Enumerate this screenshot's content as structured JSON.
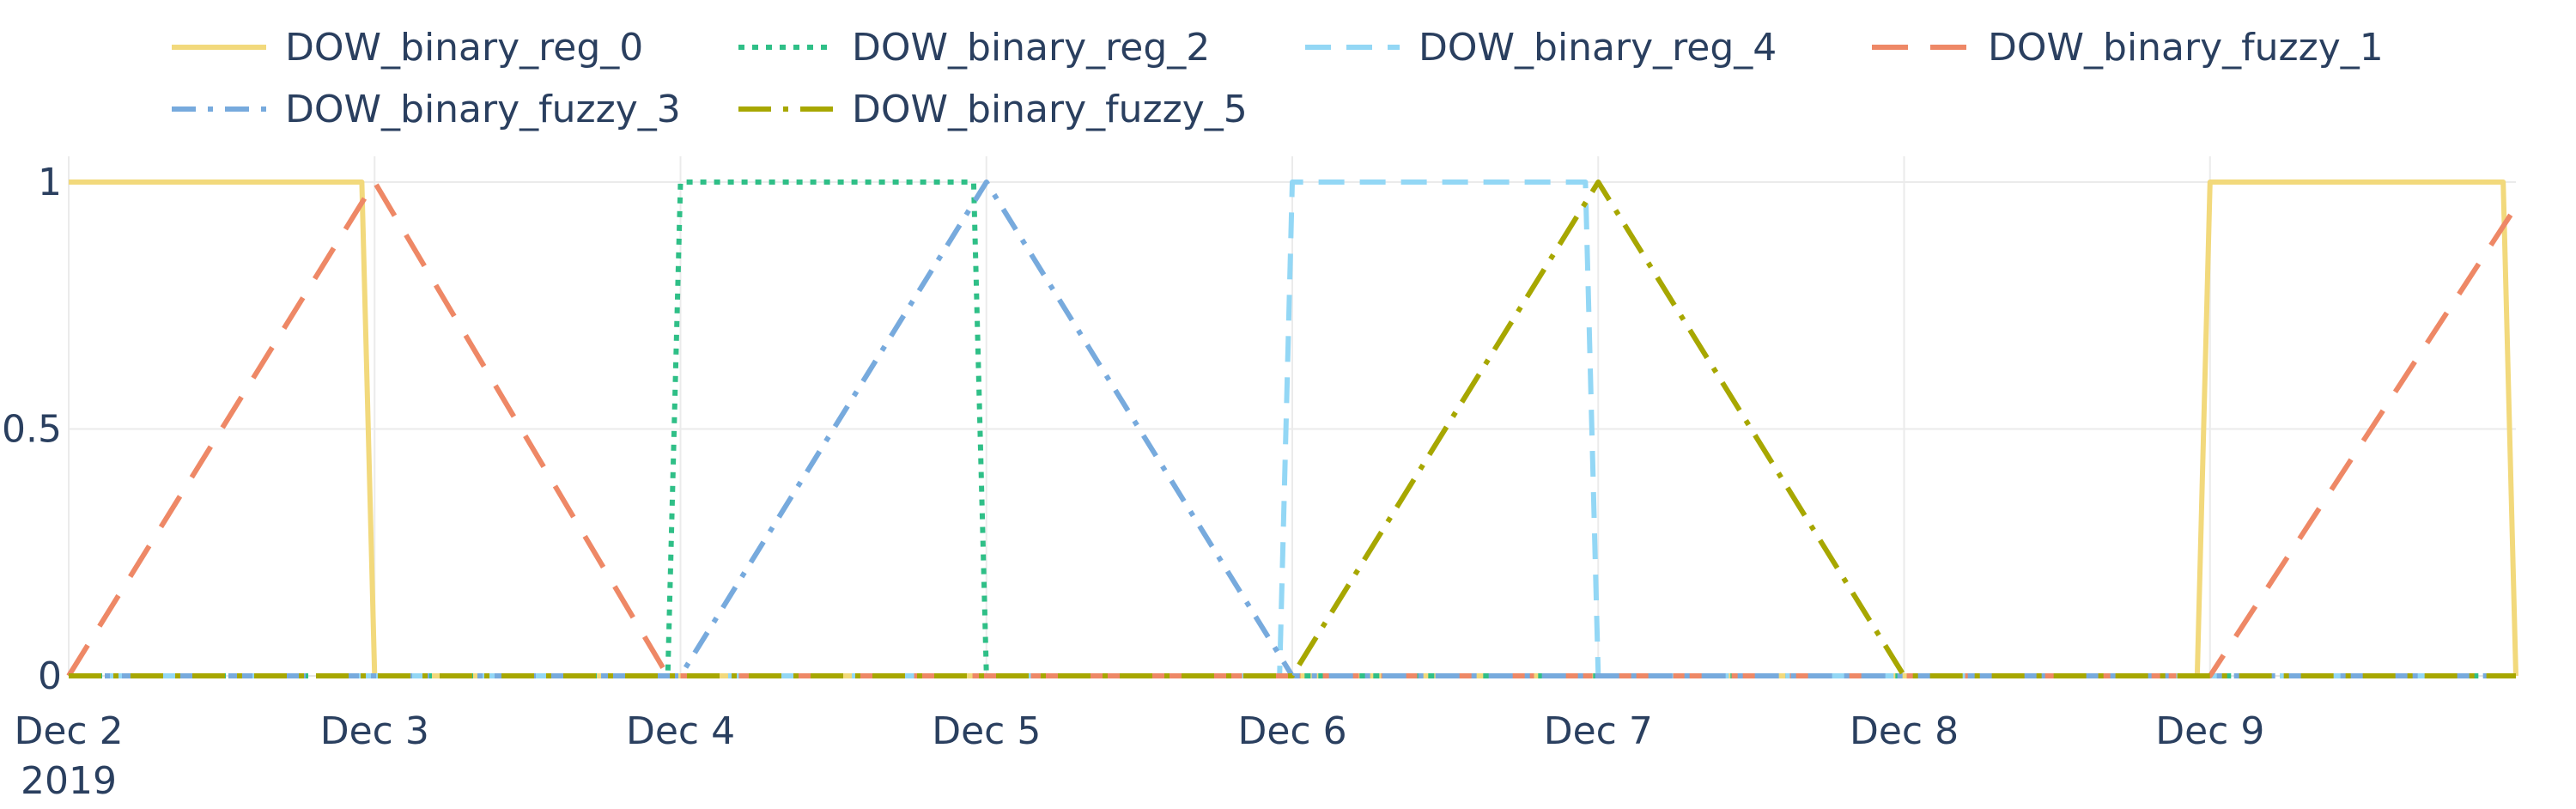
{
  "chart_data": {
    "type": "line",
    "title": "",
    "xlabel": "",
    "ylabel": "",
    "x_axis": {
      "type": "date",
      "range": [
        "2019-12-02T00:00",
        "2019-12-10T00:00"
      ],
      "ticks": [
        {
          "value": "2019-12-02T00:00",
          "label": "Dec 2",
          "sublabel": "2019"
        },
        {
          "value": "2019-12-03T00:00",
          "label": "Dec 3"
        },
        {
          "value": "2019-12-04T00:00",
          "label": "Dec 4"
        },
        {
          "value": "2019-12-05T00:00",
          "label": "Dec 5"
        },
        {
          "value": "2019-12-06T00:00",
          "label": "Dec 6"
        },
        {
          "value": "2019-12-07T00:00",
          "label": "Dec 7"
        },
        {
          "value": "2019-12-08T00:00",
          "label": "Dec 8"
        },
        {
          "value": "2019-12-09T00:00",
          "label": "Dec 9"
        }
      ],
      "grid": true
    },
    "y_axis": {
      "range": [
        0,
        1
      ],
      "ticks": [
        {
          "value": 0,
          "label": "0"
        },
        {
          "value": 0.5,
          "label": "0.5"
        },
        {
          "value": 1,
          "label": "1"
        }
      ],
      "grid": true
    },
    "legend": {
      "position": "top",
      "orientation": "horizontal"
    },
    "series": [
      {
        "name": "DOW_binary_reg_0",
        "color": "#f2d97c",
        "dash": "solid",
        "points": [
          [
            "2019-12-02T00:00",
            1
          ],
          [
            "2019-12-02T23:00",
            1
          ],
          [
            "2019-12-03T00:00",
            0
          ],
          [
            "2019-12-08T23:00",
            0
          ],
          [
            "2019-12-09T00:00",
            1
          ],
          [
            "2019-12-09T23:00",
            1
          ],
          [
            "2019-12-10T00:00",
            0
          ]
        ]
      },
      {
        "name": "DOW_binary_reg_2",
        "color": "#2fbf87",
        "dash": "dot",
        "points": [
          [
            "2019-12-02T00:00",
            0
          ],
          [
            "2019-12-03T23:00",
            0
          ],
          [
            "2019-12-04T00:00",
            1
          ],
          [
            "2019-12-04T23:00",
            1
          ],
          [
            "2019-12-05T00:00",
            0
          ],
          [
            "2019-12-10T00:00",
            0
          ]
        ]
      },
      {
        "name": "DOW_binary_reg_4",
        "color": "#93d7f5",
        "dash": "dash",
        "points": [
          [
            "2019-12-02T00:00",
            0
          ],
          [
            "2019-12-05T23:00",
            0
          ],
          [
            "2019-12-06T00:00",
            1
          ],
          [
            "2019-12-06T23:00",
            1
          ],
          [
            "2019-12-07T00:00",
            0
          ],
          [
            "2019-12-10T00:00",
            0
          ]
        ]
      },
      {
        "name": "DOW_binary_fuzzy_1",
        "color": "#ee8866",
        "dash": "longdash",
        "points": [
          [
            "2019-12-02T00:00",
            0
          ],
          [
            "2019-12-03T00:00",
            1
          ],
          [
            "2019-12-03T23:00",
            0
          ],
          [
            "2019-12-09T00:00",
            0
          ],
          [
            "2019-12-10T00:00",
            0.95
          ]
        ]
      },
      {
        "name": "DOW_binary_fuzzy_3",
        "color": "#77aadd",
        "dash": "dashdot",
        "points": [
          [
            "2019-12-02T00:00",
            0
          ],
          [
            "2019-12-04T00:00",
            0
          ],
          [
            "2019-12-05T00:00",
            1
          ],
          [
            "2019-12-06T00:00",
            0
          ],
          [
            "2019-12-10T00:00",
            0
          ]
        ]
      },
      {
        "name": "DOW_binary_fuzzy_5",
        "color": "#a7a700",
        "dash": "longdashdot",
        "points": [
          [
            "2019-12-02T00:00",
            0
          ],
          [
            "2019-12-06T00:00",
            0
          ],
          [
            "2019-12-07T00:00",
            1
          ],
          [
            "2019-12-08T00:00",
            0
          ],
          [
            "2019-12-10T00:00",
            0
          ]
        ]
      }
    ]
  }
}
